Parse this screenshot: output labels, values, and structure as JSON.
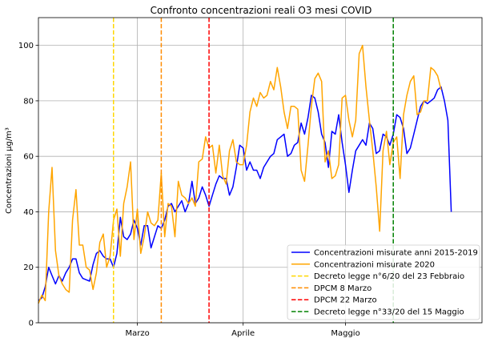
{
  "chart_data": {
    "type": "line",
    "title": "Confronto concentrazioni reali O3 mesi COVID",
    "xlabel": "",
    "ylabel": "Concentrazioni µg/m³",
    "x_range": [
      "2020-02-01",
      "2020-06-10"
    ],
    "ylim": [
      0,
      110
    ],
    "yticks": [
      0,
      20,
      40,
      60,
      80,
      100
    ],
    "xticks": [
      {
        "date": "2020-03-01",
        "label": "Marzo"
      },
      {
        "date": "2020-04-01",
        "label": "Aprile"
      },
      {
        "date": "2020-05-01",
        "label": "Maggio"
      }
    ],
    "grid": true,
    "legend_position": "lower-right",
    "series": [
      {
        "name": "Concentrazioni misurate anni 2015-2019",
        "color": "#0000ff",
        "points": [
          [
            "2020-02-01",
            8
          ],
          [
            "2020-02-02",
            9
          ],
          [
            "2020-02-03",
            13
          ],
          [
            "2020-02-04",
            20
          ],
          [
            "2020-02-05",
            17
          ],
          [
            "2020-02-06",
            14
          ],
          [
            "2020-02-07",
            17
          ],
          [
            "2020-02-08",
            15
          ],
          [
            "2020-02-09",
            18
          ],
          [
            "2020-02-10",
            20
          ],
          [
            "2020-02-11",
            23
          ],
          [
            "2020-02-12",
            23
          ],
          [
            "2020-02-13",
            18
          ],
          [
            "2020-02-14",
            16
          ],
          [
            "2020-02-15",
            15.5
          ],
          [
            "2020-02-16",
            15
          ],
          [
            "2020-02-17",
            21
          ],
          [
            "2020-02-18",
            25
          ],
          [
            "2020-02-19",
            26
          ],
          [
            "2020-02-20",
            24
          ],
          [
            "2020-02-21",
            23
          ],
          [
            "2020-02-22",
            23
          ],
          [
            "2020-02-23",
            20
          ],
          [
            "2020-02-24",
            25
          ],
          [
            "2020-02-25",
            38
          ],
          [
            "2020-02-26",
            31
          ],
          [
            "2020-02-27",
            30
          ],
          [
            "2020-02-28",
            32
          ],
          [
            "2020-02-29",
            37
          ],
          [
            "2020-03-01",
            34
          ],
          [
            "2020-03-02",
            28
          ],
          [
            "2020-03-03",
            35
          ],
          [
            "2020-03-04",
            35
          ],
          [
            "2020-03-05",
            27
          ],
          [
            "2020-03-06",
            31
          ],
          [
            "2020-03-07",
            35
          ],
          [
            "2020-03-08",
            34
          ],
          [
            "2020-03-09",
            37
          ],
          [
            "2020-03-10",
            42
          ],
          [
            "2020-03-11",
            43
          ],
          [
            "2020-03-12",
            40
          ],
          [
            "2020-03-13",
            42
          ],
          [
            "2020-03-14",
            44
          ],
          [
            "2020-03-15",
            40
          ],
          [
            "2020-03-16",
            43
          ],
          [
            "2020-03-17",
            51
          ],
          [
            "2020-03-18",
            43
          ],
          [
            "2020-03-19",
            45
          ],
          [
            "2020-03-20",
            49
          ],
          [
            "2020-03-21",
            46
          ],
          [
            "2020-03-22",
            42
          ],
          [
            "2020-03-23",
            46
          ],
          [
            "2020-03-24",
            50
          ],
          [
            "2020-03-25",
            53
          ],
          [
            "2020-03-26",
            52
          ],
          [
            "2020-03-27",
            52
          ],
          [
            "2020-03-28",
            46
          ],
          [
            "2020-03-29",
            49
          ],
          [
            "2020-03-30",
            56
          ],
          [
            "2020-03-31",
            64
          ],
          [
            "2020-04-01",
            63
          ],
          [
            "2020-04-02",
            55
          ],
          [
            "2020-04-03",
            58
          ],
          [
            "2020-04-04",
            55
          ],
          [
            "2020-04-05",
            55
          ],
          [
            "2020-04-06",
            52
          ],
          [
            "2020-04-07",
            56
          ],
          [
            "2020-04-08",
            58
          ],
          [
            "2020-04-09",
            60
          ],
          [
            "2020-04-10",
            61
          ],
          [
            "2020-04-11",
            66
          ],
          [
            "2020-04-12",
            67
          ],
          [
            "2020-04-13",
            68
          ],
          [
            "2020-04-14",
            60
          ],
          [
            "2020-04-15",
            61
          ],
          [
            "2020-04-16",
            64
          ],
          [
            "2020-04-17",
            65
          ],
          [
            "2020-04-18",
            72
          ],
          [
            "2020-04-19",
            68
          ],
          [
            "2020-04-20",
            74
          ],
          [
            "2020-04-21",
            82
          ],
          [
            "2020-04-22",
            81
          ],
          [
            "2020-04-23",
            76
          ],
          [
            "2020-04-24",
            68
          ],
          [
            "2020-04-25",
            65
          ],
          [
            "2020-04-26",
            56
          ],
          [
            "2020-04-27",
            69
          ],
          [
            "2020-04-28",
            68
          ],
          [
            "2020-04-29",
            75
          ],
          [
            "2020-04-30",
            65
          ],
          [
            "2020-05-01",
            57
          ],
          [
            "2020-05-02",
            47
          ],
          [
            "2020-05-03",
            55
          ],
          [
            "2020-05-04",
            62
          ],
          [
            "2020-05-05",
            64
          ],
          [
            "2020-05-06",
            66
          ],
          [
            "2020-05-07",
            64
          ],
          [
            "2020-05-08",
            72
          ],
          [
            "2020-05-09",
            70
          ],
          [
            "2020-05-10",
            61
          ],
          [
            "2020-05-11",
            62
          ],
          [
            "2020-05-12",
            68
          ],
          [
            "2020-05-13",
            67
          ],
          [
            "2020-05-14",
            64
          ],
          [
            "2020-05-15",
            68
          ],
          [
            "2020-05-16",
            75
          ],
          [
            "2020-05-17",
            74
          ],
          [
            "2020-05-18",
            70
          ],
          [
            "2020-05-19",
            61
          ],
          [
            "2020-05-20",
            63
          ],
          [
            "2020-05-21",
            68
          ],
          [
            "2020-05-22",
            73
          ],
          [
            "2020-05-23",
            78
          ],
          [
            "2020-05-24",
            80
          ],
          [
            "2020-05-25",
            79
          ],
          [
            "2020-05-26",
            80
          ],
          [
            "2020-05-27",
            81
          ],
          [
            "2020-05-28",
            84
          ],
          [
            "2020-05-29",
            85
          ],
          [
            "2020-05-30",
            80
          ],
          [
            "2020-05-31",
            73
          ],
          [
            "2020-06-01",
            40
          ]
        ]
      },
      {
        "name": "Concentrazioni misurate 2020",
        "color": "#ffa500",
        "points": [
          [
            "2020-02-01",
            7
          ],
          [
            "2020-02-02",
            10
          ],
          [
            "2020-02-03",
            8
          ],
          [
            "2020-02-04",
            40
          ],
          [
            "2020-02-05",
            56
          ],
          [
            "2020-02-06",
            26
          ],
          [
            "2020-02-07",
            17
          ],
          [
            "2020-02-08",
            14
          ],
          [
            "2020-02-09",
            12
          ],
          [
            "2020-02-10",
            11
          ],
          [
            "2020-02-11",
            37
          ],
          [
            "2020-02-12",
            48
          ],
          [
            "2020-02-13",
            28
          ],
          [
            "2020-02-14",
            28
          ],
          [
            "2020-02-15",
            20
          ],
          [
            "2020-02-16",
            19
          ],
          [
            "2020-02-17",
            12
          ],
          [
            "2020-02-18",
            18
          ],
          [
            "2020-02-19",
            29
          ],
          [
            "2020-02-20",
            32
          ],
          [
            "2020-02-21",
            20
          ],
          [
            "2020-02-22",
            24
          ],
          [
            "2020-02-23",
            37
          ],
          [
            "2020-02-24",
            41
          ],
          [
            "2020-02-25",
            24
          ],
          [
            "2020-02-26",
            43
          ],
          [
            "2020-02-27",
            49
          ],
          [
            "2020-02-28",
            58
          ],
          [
            "2020-02-29",
            30
          ],
          [
            "2020-03-01",
            41
          ],
          [
            "2020-03-02",
            25
          ],
          [
            "2020-03-03",
            31
          ],
          [
            "2020-03-04",
            40
          ],
          [
            "2020-03-05",
            36
          ],
          [
            "2020-03-06",
            35
          ],
          [
            "2020-03-07",
            37
          ],
          [
            "2020-03-08",
            54
          ],
          [
            "2020-03-09",
            31
          ],
          [
            "2020-03-10",
            43
          ],
          [
            "2020-03-11",
            42
          ],
          [
            "2020-03-12",
            31
          ],
          [
            "2020-03-13",
            51
          ],
          [
            "2020-03-14",
            46
          ],
          [
            "2020-03-15",
            45
          ],
          [
            "2020-03-16",
            43
          ],
          [
            "2020-03-17",
            45
          ],
          [
            "2020-03-18",
            42
          ],
          [
            "2020-03-19",
            58
          ],
          [
            "2020-03-20",
            59
          ],
          [
            "2020-03-21",
            67
          ],
          [
            "2020-03-22",
            63
          ],
          [
            "2020-03-23",
            64
          ],
          [
            "2020-03-24",
            54
          ],
          [
            "2020-03-25",
            64
          ],
          [
            "2020-03-26",
            53
          ],
          [
            "2020-03-27",
            50
          ],
          [
            "2020-03-28",
            62
          ],
          [
            "2020-03-29",
            66
          ],
          [
            "2020-03-30",
            58
          ],
          [
            "2020-03-31",
            57
          ],
          [
            "2020-04-01",
            57
          ],
          [
            "2020-04-02",
            64
          ],
          [
            "2020-04-03",
            76
          ],
          [
            "2020-04-04",
            81
          ],
          [
            "2020-04-05",
            78
          ],
          [
            "2020-04-06",
            83
          ],
          [
            "2020-04-07",
            81
          ],
          [
            "2020-04-08",
            82
          ],
          [
            "2020-04-09",
            87
          ],
          [
            "2020-04-10",
            84
          ],
          [
            "2020-04-11",
            92
          ],
          [
            "2020-04-12",
            85
          ],
          [
            "2020-04-13",
            76
          ],
          [
            "2020-04-14",
            70
          ],
          [
            "2020-04-15",
            78
          ],
          [
            "2020-04-16",
            78
          ],
          [
            "2020-04-17",
            77
          ],
          [
            "2020-04-18",
            55
          ],
          [
            "2020-04-19",
            51
          ],
          [
            "2020-04-20",
            64
          ],
          [
            "2020-04-21",
            78
          ],
          [
            "2020-04-22",
            88
          ],
          [
            "2020-04-23",
            90
          ],
          [
            "2020-04-24",
            87
          ],
          [
            "2020-04-25",
            58
          ],
          [
            "2020-04-26",
            62
          ],
          [
            "2020-04-27",
            52
          ],
          [
            "2020-04-28",
            53
          ],
          [
            "2020-04-29",
            57
          ],
          [
            "2020-04-30",
            81
          ],
          [
            "2020-05-01",
            82
          ],
          [
            "2020-05-02",
            73
          ],
          [
            "2020-05-03",
            67
          ],
          [
            "2020-05-04",
            73
          ],
          [
            "2020-05-05",
            97
          ],
          [
            "2020-05-06",
            100
          ],
          [
            "2020-05-07",
            85
          ],
          [
            "2020-05-08",
            73
          ],
          [
            "2020-05-09",
            62
          ],
          [
            "2020-05-10",
            49
          ],
          [
            "2020-05-11",
            33
          ],
          [
            "2020-05-12",
            62
          ],
          [
            "2020-05-13",
            69
          ],
          [
            "2020-05-14",
            57
          ],
          [
            "2020-05-15",
            65
          ],
          [
            "2020-05-16",
            67
          ],
          [
            "2020-05-17",
            52
          ],
          [
            "2020-05-18",
            75
          ],
          [
            "2020-05-19",
            82
          ],
          [
            "2020-05-20",
            87
          ],
          [
            "2020-05-21",
            89
          ],
          [
            "2020-05-22",
            75
          ],
          [
            "2020-05-23",
            76
          ],
          [
            "2020-05-24",
            80
          ],
          [
            "2020-05-25",
            80
          ],
          [
            "2020-05-26",
            92
          ],
          [
            "2020-05-27",
            91
          ],
          [
            "2020-05-28",
            89
          ],
          [
            "2020-05-29",
            84
          ]
        ]
      }
    ],
    "vlines": [
      {
        "name": "Decreto legge n°6/20 del 23 Febbraio",
        "date": "2020-02-23",
        "color": "#ffd700"
      },
      {
        "name": "DPCM 8 Marzo",
        "date": "2020-03-08",
        "color": "#ff8c00"
      },
      {
        "name": "DPCM 22 Marzo",
        "date": "2020-03-22",
        "color": "#ff0000"
      },
      {
        "name": "Decreto legge n°33/20 del 15 Maggio",
        "date": "2020-05-15",
        "color": "#008000"
      }
    ]
  }
}
